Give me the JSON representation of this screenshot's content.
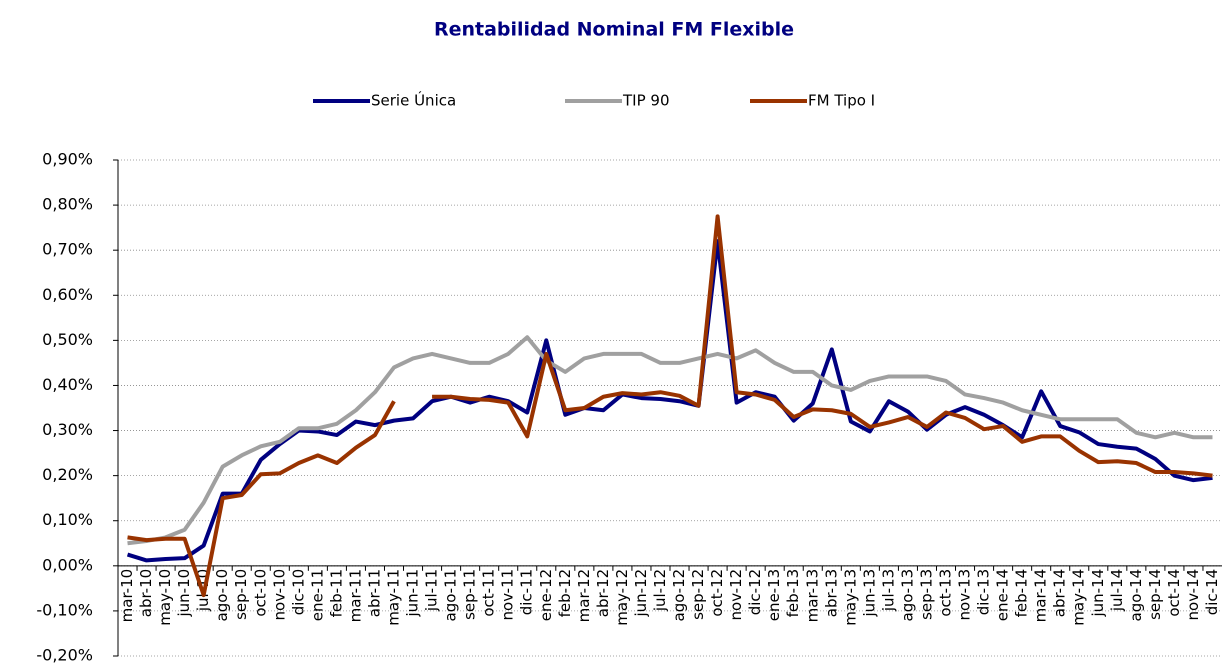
{
  "chart_data": {
    "type": "line",
    "title": "Rentabilidad Nominal FM Flexible",
    "categories": [
      "mar-10",
      "abr-10",
      "may-10",
      "jun-10",
      "jul-10",
      "ago-10",
      "sep-10",
      "oct-10",
      "nov-10",
      "dic-10",
      "ene-11",
      "feb-11",
      "mar-11",
      "abr-11",
      "may-11",
      "jun-11",
      "jul-11",
      "ago-11",
      "sep-11",
      "oct-11",
      "nov-11",
      "dic-11",
      "ene-12",
      "feb-12",
      "mar-12",
      "abr-12",
      "may-12",
      "jun-12",
      "jul-12",
      "ago-12",
      "sep-12",
      "oct-12",
      "nov-12",
      "dic-12",
      "ene-13",
      "feb-13",
      "mar-13",
      "abr-13",
      "may-13",
      "jun-13",
      "jul-13",
      "ago-13",
      "sep-13",
      "oct-13",
      "nov-13",
      "dic-13",
      "ene-14",
      "feb-14",
      "mar-14",
      "abr-14",
      "may-14",
      "jun-14",
      "jul-14",
      "ago-14",
      "sep-14",
      "oct-14",
      "nov-14",
      "dic-14"
    ],
    "series": [
      {
        "name": "Serie Única",
        "color": "#000080",
        "values": [
          0.025,
          0.012,
          0.015,
          0.017,
          0.045,
          0.16,
          0.16,
          0.235,
          0.27,
          0.3,
          0.298,
          0.29,
          0.32,
          0.312,
          0.322,
          0.327,
          0.365,
          0.375,
          0.362,
          0.375,
          0.365,
          0.34,
          0.5,
          0.335,
          0.35,
          0.345,
          0.38,
          0.372,
          0.37,
          0.365,
          0.355,
          0.72,
          0.362,
          0.385,
          0.375,
          0.322,
          0.36,
          0.48,
          0.32,
          0.298,
          0.365,
          0.342,
          0.302,
          0.335,
          0.352,
          0.335,
          0.312,
          0.285,
          0.387,
          0.31,
          0.296,
          0.27,
          0.264,
          0.26,
          0.237,
          0.2,
          0.19,
          0.195
        ]
      },
      {
        "name": "TIP 90",
        "color": "#a0a0a0",
        "values": [
          0.05,
          0.055,
          0.063,
          0.08,
          0.14,
          0.22,
          0.245,
          0.265,
          0.275,
          0.305,
          0.305,
          0.315,
          0.345,
          0.385,
          0.44,
          0.46,
          0.47,
          0.46,
          0.45,
          0.45,
          0.47,
          0.507,
          0.455,
          0.43,
          0.46,
          0.47,
          0.47,
          0.47,
          0.45,
          0.45,
          0.46,
          0.47,
          0.46,
          0.478,
          0.45,
          0.43,
          0.43,
          0.4,
          0.39,
          0.41,
          0.42,
          0.42,
          0.42,
          0.41,
          0.38,
          0.372,
          0.362,
          0.345,
          0.335,
          0.325,
          0.325,
          0.325,
          0.325,
          0.295,
          0.285,
          0.295,
          0.285,
          0.285
        ]
      },
      {
        "name": "FM Tipo I",
        "color": "#993300",
        "values": [
          0.063,
          0.057,
          0.06,
          0.06,
          -0.065,
          0.15,
          0.157,
          0.203,
          0.205,
          0.228,
          0.245,
          0.228,
          0.262,
          0.29,
          0.365,
          null,
          0.375,
          0.375,
          0.37,
          0.368,
          0.362,
          0.287,
          0.47,
          0.345,
          0.35,
          0.375,
          0.383,
          0.38,
          0.385,
          0.377,
          0.355,
          0.775,
          0.385,
          0.38,
          0.368,
          0.33,
          0.347,
          0.345,
          0.337,
          0.308,
          0.318,
          0.33,
          0.308,
          0.34,
          0.328,
          0.303,
          0.31,
          0.275,
          0.287,
          0.287,
          0.255,
          0.23,
          0.232,
          0.228,
          0.208,
          0.208,
          0.205,
          0.2
        ]
      }
    ],
    "ylim": [
      -0.2,
      0.9
    ],
    "yticks": [
      {
        "value": -0.2,
        "label": "-0,20%"
      },
      {
        "value": -0.1,
        "label": "-0,10%"
      },
      {
        "value": 0,
        "label": "0,00%"
      },
      {
        "value": 0.1,
        "label": "0,10%"
      },
      {
        "value": 0.2,
        "label": "0,20%"
      },
      {
        "value": 0.3,
        "label": "0,30%"
      },
      {
        "value": 0.4,
        "label": "0,40%"
      },
      {
        "value": 0.5,
        "label": "0,50%"
      },
      {
        "value": 0.6,
        "label": "0,60%"
      },
      {
        "value": 0.7,
        "label": "0,70%"
      },
      {
        "value": 0.8,
        "label": "0,80%"
      },
      {
        "value": 0.9,
        "label": "0,90%"
      }
    ],
    "grid": true,
    "legend": "top"
  }
}
